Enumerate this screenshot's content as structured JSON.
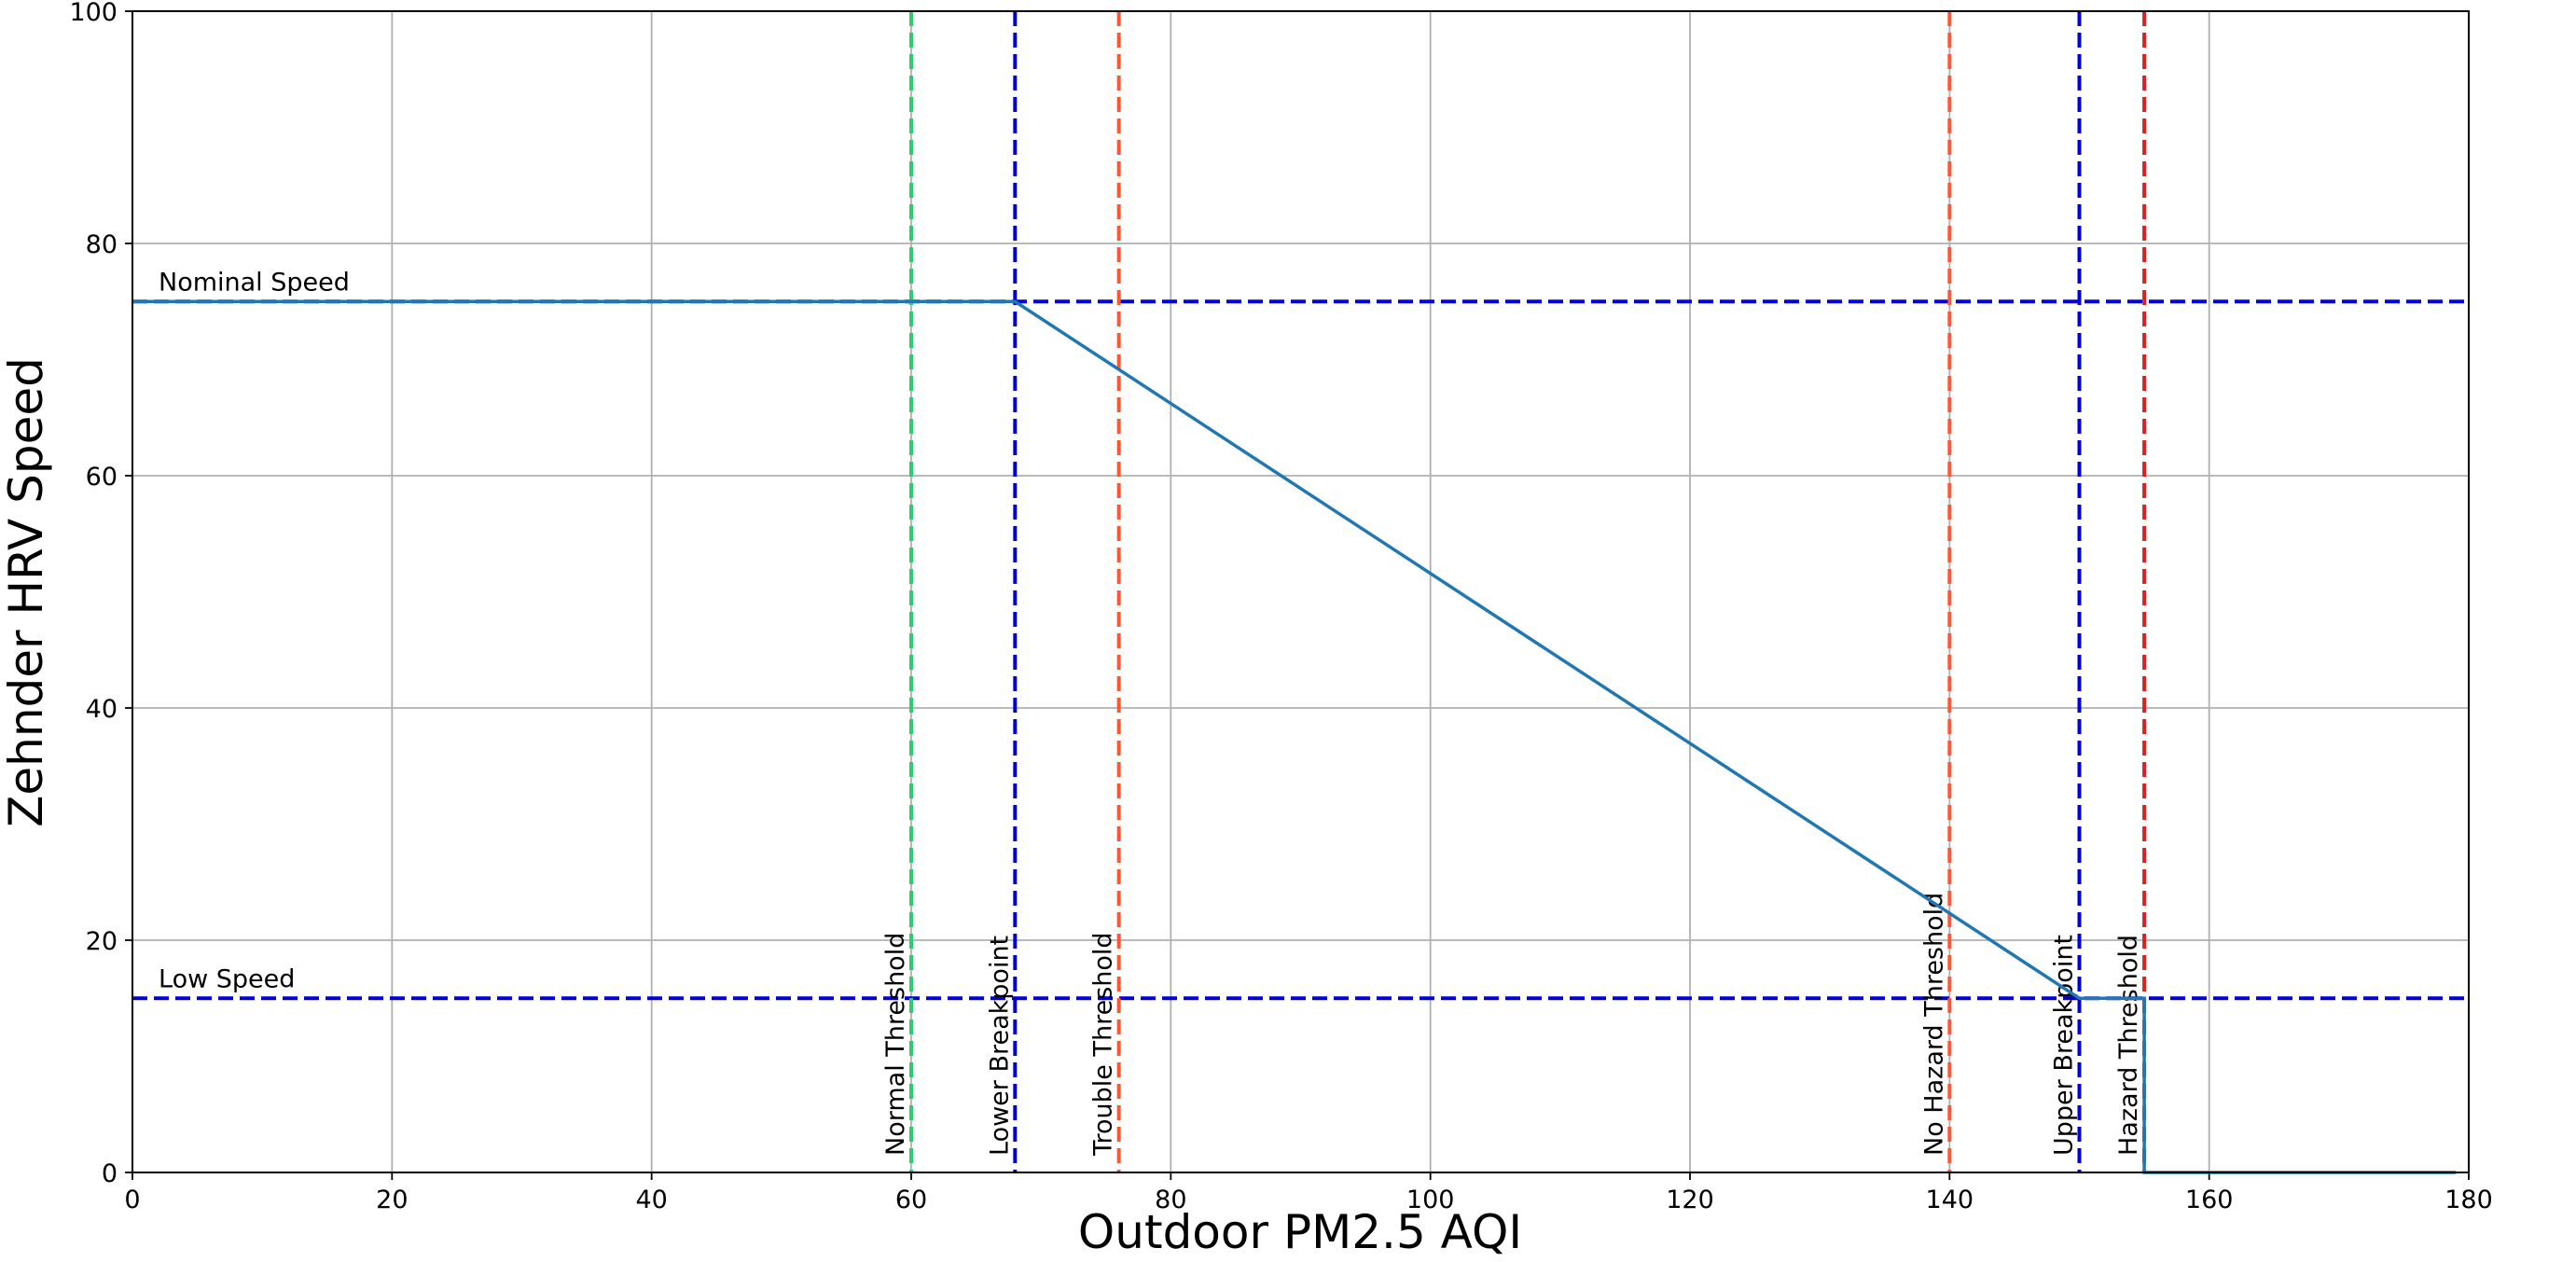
{
  "chart_data": {
    "type": "line",
    "xlabel": "Outdoor PM2.5 AQI",
    "ylabel": "Zehnder HRV Speed",
    "x": [
      0,
      68,
      150,
      155,
      155,
      179
    ],
    "values": [
      75,
      75,
      15,
      15,
      0,
      0
    ],
    "color": "#1f77b4",
    "xlim": [
      0,
      180
    ],
    "xticks": [
      0,
      20,
      40,
      60,
      80,
      100,
      120,
      140,
      160,
      180
    ],
    "ylim": [
      0,
      100
    ],
    "yticks": [
      0,
      20,
      40,
      60,
      80,
      100
    ],
    "grid": true,
    "hlines": [
      {
        "label": "Nominal Speed",
        "value": 75,
        "color": "#0000dd"
      },
      {
        "label": "Low Speed",
        "value": 15,
        "color": "#0000dd"
      }
    ],
    "vlines": [
      {
        "label": "Normal Threshold",
        "value": 60,
        "color": "#2ecc71"
      },
      {
        "label": "Lower Breakpoint",
        "value": 68,
        "color": "#0000dd"
      },
      {
        "label": "Trouble Threshold",
        "value": 76,
        "color": "#ff5733"
      },
      {
        "label": "No Hazard Threshold",
        "value": 140,
        "color": "#ff5733"
      },
      {
        "label": "Upper Breakpoint",
        "value": 150,
        "color": "#0000dd"
      },
      {
        "label": "Hazard Threshold",
        "value": 155,
        "color": "#e02020"
      }
    ]
  }
}
